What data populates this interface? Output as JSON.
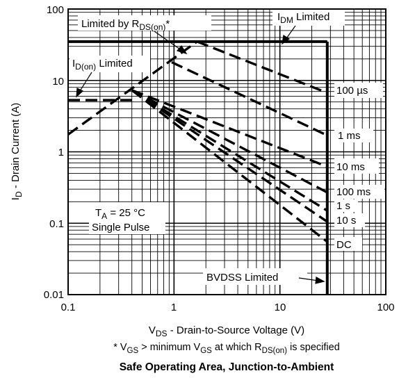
{
  "chart_data": {
    "type": "line",
    "title": "Safe Operating Area, Junction-to-Ambient",
    "footnote": {
      "prefix": "* V",
      "gs_sub": "GS",
      "middle": " > minimum V",
      "gs_sub2": "GS",
      "middle2": " at which R",
      "rds_sub": "DS(on)",
      "suffix": " is specified"
    },
    "xlabel": {
      "main": "V",
      "sub": "DS",
      "rest": " - Drain-to-Source Voltage (V)"
    },
    "ylabel": {
      "main": "I",
      "sub": "D",
      "rest": " - Drain Current (A)"
    },
    "x_scale": "log",
    "y_scale": "log",
    "xlim": [
      0.1,
      100
    ],
    "ylim": [
      0.01,
      100
    ],
    "x_ticks": [
      {
        "value": 0.1,
        "label": "0.1"
      },
      {
        "value": 1,
        "label": "1"
      },
      {
        "value": 10,
        "label": "10"
      },
      {
        "value": 100,
        "label": "100"
      }
    ],
    "y_ticks": [
      {
        "value": 100,
        "label": "100"
      },
      {
        "value": 10,
        "label": "10"
      },
      {
        "value": 1,
        "label": "1"
      },
      {
        "value": 0.1,
        "label": "0.1"
      },
      {
        "value": 0.01,
        "label": "0.01"
      }
    ],
    "grid": true,
    "limits": [
      {
        "name": "IDM Limited",
        "kind": "horizontal",
        "value": 35,
        "from_x": 0.1,
        "to_x": 28
      },
      {
        "name": "BVDSS Limited",
        "kind": "vertical",
        "value": 28,
        "from_y": 0.01,
        "to_y": 35
      }
    ],
    "series": [
      {
        "label": "100 µs",
        "points": [
          [
            1.65,
            35
          ],
          [
            28,
            6.7
          ]
        ]
      },
      {
        "label": "1 ms",
        "points": [
          [
            0.95,
            18
          ],
          [
            28,
            1.7
          ]
        ]
      },
      {
        "label": "10 ms",
        "points": [
          [
            0.4,
            7.3
          ],
          [
            28,
            0.62
          ]
        ]
      },
      {
        "label": "100 ms",
        "points": [
          [
            0.4,
            7.3
          ],
          [
            28,
            0.27
          ]
        ]
      },
      {
        "label": "1 s",
        "points": [
          [
            0.4,
            7.3
          ],
          [
            28,
            0.15
          ]
        ]
      },
      {
        "label": "10 s",
        "points": [
          [
            0.4,
            7.3
          ],
          [
            28,
            0.105
          ]
        ]
      },
      {
        "label": "DC",
        "points": [
          [
            0.4,
            7.3
          ],
          [
            28,
            0.055
          ]
        ]
      },
      {
        "label": "Limited by RDS(on)*",
        "points": [
          [
            0.1,
            1.75
          ],
          [
            1.65,
            35
          ]
        ]
      },
      {
        "label": "ID(on) Limited",
        "points": [
          [
            0.1,
            5.3
          ],
          [
            0.4,
            5.3
          ]
        ]
      }
    ],
    "annotations": {
      "rds": {
        "prefix": "Limited by R",
        "sub": "DS(on)",
        "suffix": "*"
      },
      "idm": {
        "prefix": "I",
        "sub": "DM",
        "suffix": " Limited"
      },
      "idon": {
        "prefix": "I",
        "sub": "D(on)",
        "suffix": " Limited"
      },
      "bvdss": "BVDSS Limited",
      "conditions": {
        "ta_prefix": "T",
        "ta_sub": "A",
        "ta_suffix": " = 25 °C",
        "pulse": "Single Pulse"
      }
    }
  }
}
